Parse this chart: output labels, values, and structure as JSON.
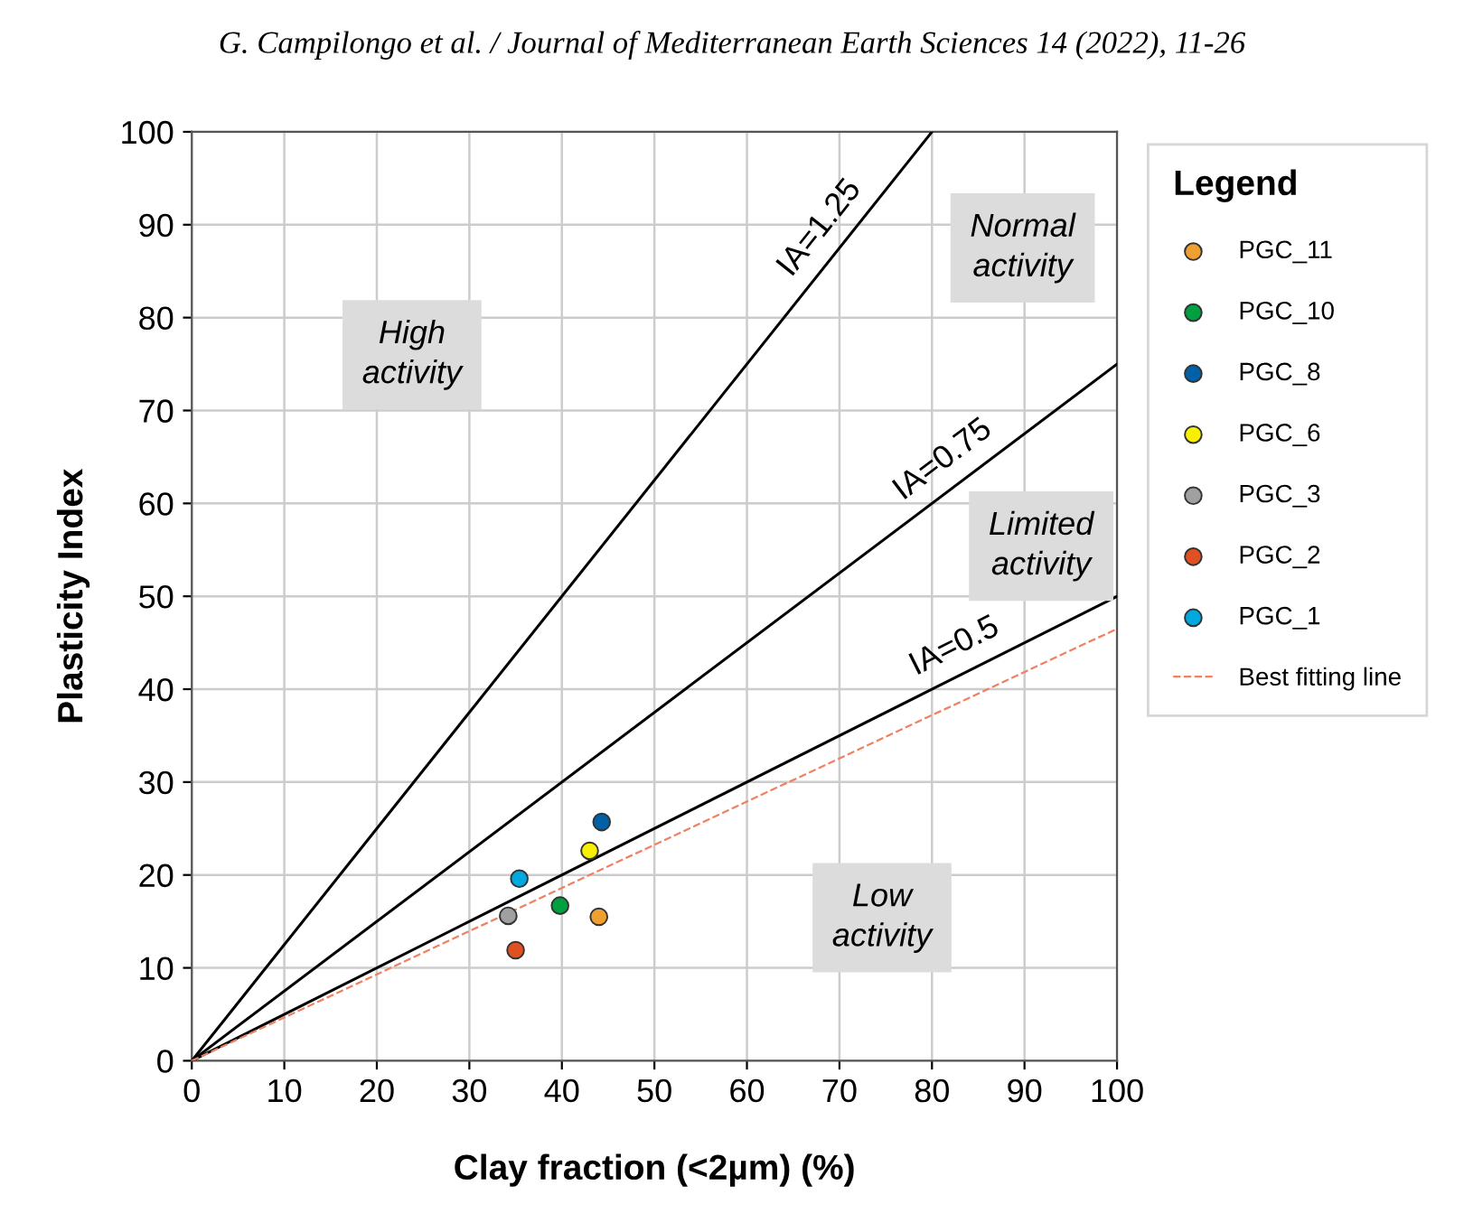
{
  "chart_data": {
    "type": "scatter",
    "xlabel": "Clay fraction (<2µm) (%)",
    "ylabel": "Plasticity Index",
    "legend_title": "Legend",
    "xlim": [
      0,
      100
    ],
    "ylim": [
      0,
      100
    ],
    "xticks": [
      0,
      10,
      20,
      30,
      40,
      50,
      60,
      70,
      80,
      90,
      100
    ],
    "yticks": [
      0,
      10,
      20,
      30,
      40,
      50,
      60,
      70,
      80,
      90,
      100
    ],
    "grid": true,
    "legend": "right",
    "series": [
      {
        "name": "PGC_11",
        "marker": "circle",
        "color": "#f0a030",
        "x": [
          44
        ],
        "values": [
          15.5
        ]
      },
      {
        "name": "PGC_10",
        "marker": "circle",
        "color": "#00a040",
        "x": [
          39.8
        ],
        "values": [
          16.7
        ]
      },
      {
        "name": "PGC_8",
        "marker": "circle",
        "color": "#0060a8",
        "x": [
          44.3
        ],
        "values": [
          25.7
        ]
      },
      {
        "name": "PGC_6",
        "marker": "circle",
        "color": "#f8f000",
        "x": [
          43
        ],
        "values": [
          22.6
        ]
      },
      {
        "name": "PGC_3",
        "marker": "circle",
        "color": "#a0a0a0",
        "x": [
          34.2
        ],
        "values": [
          15.6
        ]
      },
      {
        "name": "PGC_2",
        "marker": "circle",
        "color": "#e05020",
        "x": [
          35
        ],
        "values": [
          11.9
        ]
      },
      {
        "name": "PGC_1",
        "marker": "circle",
        "color": "#00a8e0",
        "x": [
          35.4
        ],
        "values": [
          19.6
        ]
      },
      {
        "type": "line",
        "color": "#000000",
        "line_style": "solid",
        "x": [
          0,
          80
        ],
        "values": [
          0,
          100
        ]
      },
      {
        "type": "line",
        "color": "#000000",
        "line_style": "solid",
        "x": [
          0,
          100
        ],
        "values": [
          0,
          75
        ]
      },
      {
        "type": "line",
        "color": "#000000",
        "line_style": "solid",
        "x": [
          0,
          100
        ],
        "values": [
          0,
          50
        ]
      },
      {
        "name": "Best fitting line",
        "type": "line",
        "color": "#f08060",
        "line_style": "dashed",
        "x": [
          0,
          100
        ],
        "values": [
          0,
          46.5
        ]
      }
    ],
    "annotations": [
      "G. Campilongo et al. / Journal of Mediterranean Earth Sciences 14 (2022), 11-26",
      {
        "text": "IA=1.25",
        "x": 70,
        "y": 87.5
      },
      {
        "text": "IA=0.75",
        "x": 83,
        "y": 62.25
      },
      {
        "text": "IA=0.5",
        "x": 84,
        "y": 42
      },
      "High\nactivity",
      "Normal\nactivity",
      "Limited\nactivity",
      "Low\nactivity"
    ]
  }
}
